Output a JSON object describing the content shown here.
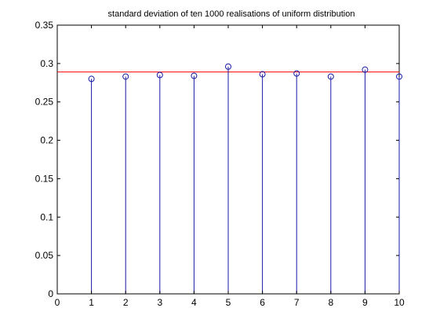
{
  "chart_data": {
    "type": "stem",
    "title": "standard deviation of ten 1000 realisations of uniform distribution",
    "xlabel": "",
    "ylabel": "",
    "xlim": [
      0,
      10
    ],
    "ylim": [
      0,
      0.35
    ],
    "xticks": [
      "0",
      "1",
      "2",
      "3",
      "4",
      "5",
      "6",
      "7",
      "8",
      "9",
      "10"
    ],
    "yticks": [
      "0",
      "0.05",
      "0.1",
      "0.15",
      "0.2",
      "0.25",
      "0.3",
      "0.35"
    ],
    "grid": false,
    "series": [
      {
        "x": [
          1,
          2,
          3,
          4,
          5,
          6,
          7,
          8,
          9,
          10
        ],
        "values": [
          0.28,
          0.283,
          0.285,
          0.284,
          0.296,
          0.286,
          0.287,
          0.283,
          0.292,
          0.283
        ],
        "color": "#1a1aa8",
        "marker": "circle"
      }
    ],
    "reference_line": {
      "y": 0.289,
      "color": "#ff0000"
    }
  }
}
